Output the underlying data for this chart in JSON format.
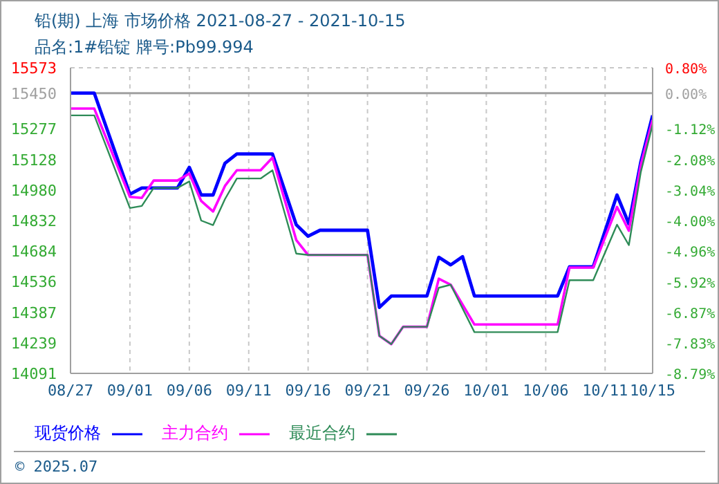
{
  "chart_data": {
    "type": "line",
    "title": "铅(期) 上海 市场价格 2021-08-27 - 2021-10-15",
    "subtitle": "品名:1#铅锭 牌号:Pb99.994",
    "annotations": [
      "© 2025.07"
    ],
    "xlim": [
      "2021-08-27",
      "2021-10-15"
    ],
    "xticks": [
      {
        "value": "2021-08-27",
        "label": "08/27"
      },
      {
        "value": "2021-09-01",
        "label": "09/01"
      },
      {
        "value": "2021-09-06",
        "label": "09/06"
      },
      {
        "value": "2021-09-11",
        "label": "09/11"
      },
      {
        "value": "2021-09-16",
        "label": "09/16"
      },
      {
        "value": "2021-09-21",
        "label": "09/21"
      },
      {
        "value": "2021-09-26",
        "label": "09/26"
      },
      {
        "value": "2021-10-01",
        "label": "10/01"
      },
      {
        "value": "2021-10-06",
        "label": "10/06"
      },
      {
        "value": "2021-10-11",
        "label": "10/11"
      },
      {
        "value": "2021-10-15",
        "label": "10/15"
      }
    ],
    "ylim": [
      14091,
      15573
    ],
    "yticks": [
      14091,
      14239,
      14387,
      14536,
      14684,
      14832,
      14980,
      15128,
      15277,
      15450,
      15573
    ],
    "y2lim": [
      -8.79,
      0.8
    ],
    "y2ticks": [
      {
        "value": -8.79,
        "label": "-8.79%"
      },
      {
        "value": -7.83,
        "label": "-7.83%"
      },
      {
        "value": -6.87,
        "label": "-6.87%"
      },
      {
        "value": -5.92,
        "label": "-5.92%"
      },
      {
        "value": -4.96,
        "label": "-4.96%"
      },
      {
        "value": -4.0,
        "label": "-4.00%"
      },
      {
        "value": -3.04,
        "label": "-3.04%"
      },
      {
        "value": -2.08,
        "label": "-2.08%"
      },
      {
        "value": -1.12,
        "label": "-1.12%"
      },
      {
        "value": 0,
        "label": "0.00%"
      },
      {
        "value": 0.8,
        "label": "0.80%"
      }
    ],
    "ref_lines": [
      {
        "axis": "y",
        "value": 15450,
        "label": null,
        "color": "#a0a0a0"
      }
    ],
    "grid": true,
    "legend": "bottom",
    "marker": "none",
    "line_style": "solid",
    "series": [
      {
        "name": "现货价格",
        "color": "#0000ff",
        "x": [
          "2021-08-27",
          "2021-08-29",
          "2021-09-01",
          "2021-09-02",
          "2021-09-05",
          "2021-09-06",
          "2021-09-07",
          "2021-09-08",
          "2021-09-09",
          "2021-09-10",
          "2021-09-13",
          "2021-09-15",
          "2021-09-16",
          "2021-09-17",
          "2021-09-21",
          "2021-09-22",
          "2021-09-23",
          "2021-09-26",
          "2021-09-27",
          "2021-09-28",
          "2021-09-29",
          "2021-09-30",
          "2021-10-07",
          "2021-10-08",
          "2021-10-10",
          "2021-10-12",
          "2021-10-13",
          "2021-10-14",
          "2021-10-15"
        ],
        "values": [
          15450,
          15450,
          14960,
          14990,
          14990,
          15090,
          14956,
          14956,
          15110,
          15155,
          15155,
          14812,
          14756,
          14785,
          14785,
          14411,
          14466,
          14466,
          14654,
          14617,
          14657,
          14466,
          14466,
          14608,
          14608,
          14956,
          14816,
          15115,
          15342
        ]
      },
      {
        "name": "主力合约",
        "color": "#ff00ff",
        "x": [
          "2021-08-27",
          "2021-08-29",
          "2021-09-01",
          "2021-09-02",
          "2021-09-03",
          "2021-09-05",
          "2021-09-06",
          "2021-09-07",
          "2021-09-08",
          "2021-09-09",
          "2021-09-10",
          "2021-09-12",
          "2021-09-13",
          "2021-09-15",
          "2021-09-16",
          "2021-09-21",
          "2021-09-22",
          "2021-09-23",
          "2021-09-24",
          "2021-09-26",
          "2021-09-27",
          "2021-09-28",
          "2021-09-30",
          "2021-10-07",
          "2021-10-08",
          "2021-10-10",
          "2021-10-12",
          "2021-10-13",
          "2021-10-14",
          "2021-10-15"
        ],
        "values": [
          15375,
          15375,
          14947,
          14942,
          15026,
          15026,
          15060,
          14927,
          14876,
          15000,
          15076,
          15076,
          15137,
          14738,
          14665,
          14665,
          14273,
          14233,
          14317,
          14317,
          14550,
          14521,
          14328,
          14328,
          14604,
          14604,
          14898,
          14783,
          15100,
          15320
        ]
      },
      {
        "name": "最近合约",
        "color": "#2e8b57",
        "x": [
          "2021-08-27",
          "2021-08-29",
          "2021-09-01",
          "2021-09-02",
          "2021-09-03",
          "2021-09-05",
          "2021-09-06",
          "2021-09-07",
          "2021-09-08",
          "2021-09-09",
          "2021-09-10",
          "2021-09-12",
          "2021-09-13",
          "2021-09-15",
          "2021-09-16",
          "2021-09-21",
          "2021-09-22",
          "2021-09-23",
          "2021-09-24",
          "2021-09-26",
          "2021-09-27",
          "2021-09-28",
          "2021-09-30",
          "2021-10-07",
          "2021-10-08",
          "2021-10-10",
          "2021-10-12",
          "2021-10-13",
          "2021-10-14",
          "2021-10-15"
        ],
        "values": [
          15342,
          15342,
          14893,
          14903,
          14990,
          14990,
          15022,
          14832,
          14810,
          14936,
          15036,
          15036,
          15076,
          14672,
          14665,
          14665,
          14273,
          14233,
          14317,
          14317,
          14506,
          14521,
          14291,
          14291,
          14543,
          14543,
          14812,
          14713,
          15066,
          15298
        ]
      }
    ]
  }
}
